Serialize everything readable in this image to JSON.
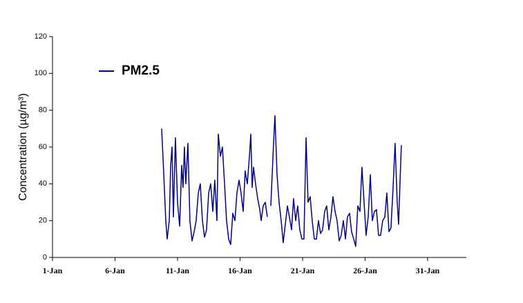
{
  "chart_data": {
    "type": "line",
    "ylabel": "Concentration (µg/m³)",
    "xlim": [
      1,
      34.1
    ],
    "xticks": [
      {
        "value": 1,
        "label": "1-Jan"
      },
      {
        "value": 6,
        "label": "6-Jan"
      },
      {
        "value": 11,
        "label": "11-Jan"
      },
      {
        "value": 16,
        "label": "16-Jan"
      },
      {
        "value": 21,
        "label": "21-Jan"
      },
      {
        "value": 26,
        "label": "26-Jan"
      },
      {
        "value": 31,
        "label": "31-Jan"
      }
    ],
    "ylim": [
      0,
      120
    ],
    "yticks": [
      0,
      20,
      40,
      60,
      80,
      100,
      120
    ],
    "legend": "upper left",
    "x": [
      9.73,
      9.9,
      10.06,
      10.17,
      10.34,
      10.45,
      10.56,
      10.67,
      10.83,
      11.0,
      11.17,
      11.33,
      11.44,
      11.55,
      11.66,
      11.83,
      11.99,
      12.16,
      12.33,
      12.49,
      12.66,
      12.82,
      12.99,
      13.16,
      13.32,
      13.49,
      13.65,
      13.82,
      13.98,
      14.15,
      14.26,
      14.43,
      14.59,
      14.76,
      14.92,
      15.09,
      15.25,
      15.42,
      15.59,
      15.75,
      15.92,
      16.08,
      16.25,
      16.41,
      16.58,
      16.75,
      16.86,
      16.97,
      17.08,
      17.24,
      17.41,
      17.58,
      17.69,
      17.85,
      18.02,
      18.18,
      18.3,
      18.46,
      18.68,
      18.79,
      18.96,
      19.12,
      19.29,
      19.45,
      19.62,
      19.79,
      19.95,
      20.12,
      20.28,
      20.45,
      20.61,
      20.78,
      20.95,
      21.11,
      21.28,
      21.44,
      21.61,
      21.77,
      21.94,
      22.11,
      22.27,
      22.44,
      22.6,
      22.77,
      22.93,
      23.1,
      23.27,
      23.43,
      23.6,
      23.76,
      23.93,
      24.09,
      24.26,
      24.43,
      24.59,
      24.76,
      24.92,
      25.09,
      25.25,
      25.42,
      25.59,
      25.75,
      25.92,
      26.08,
      26.25,
      26.42,
      26.58,
      26.75,
      26.91,
      27.08,
      27.24,
      27.41,
      27.58,
      27.74,
      27.91,
      28.07,
      28.24,
      28.4,
      28.57,
      28.68,
      28.79,
      28.9
    ],
    "series": [
      {
        "name": "PM2.5",
        "color": "#000080",
        "values": [
          70,
          45,
          20,
          10,
          20,
          50,
          60,
          22,
          65,
          30,
          17,
          50,
          38,
          60,
          40,
          62,
          20,
          9,
          14,
          20,
          35,
          40,
          20,
          11,
          15,
          35,
          40,
          25,
          42,
          20,
          67,
          55,
          60,
          40,
          20,
          10,
          7,
          24,
          20,
          35,
          42,
          35,
          25,
          47,
          40,
          55,
          67,
          38,
          49,
          40,
          32,
          26,
          20,
          28,
          30,
          22,
          null,
          28,
          62,
          77,
          45,
          30,
          20,
          8,
          18,
          28,
          22,
          15,
          32,
          20,
          28,
          15,
          10,
          10,
          65,
          30,
          33,
          20,
          10,
          10,
          20,
          13,
          15,
          25,
          28,
          15,
          22,
          33,
          25,
          20,
          9,
          12,
          20,
          10,
          22,
          24,
          14,
          10,
          6,
          28,
          25,
          49,
          30,
          12,
          22,
          45,
          20,
          25,
          26,
          12,
          12,
          20,
          22,
          35,
          14,
          16,
          38,
          62,
          30,
          18,
          40,
          61
        ]
      }
    ]
  }
}
